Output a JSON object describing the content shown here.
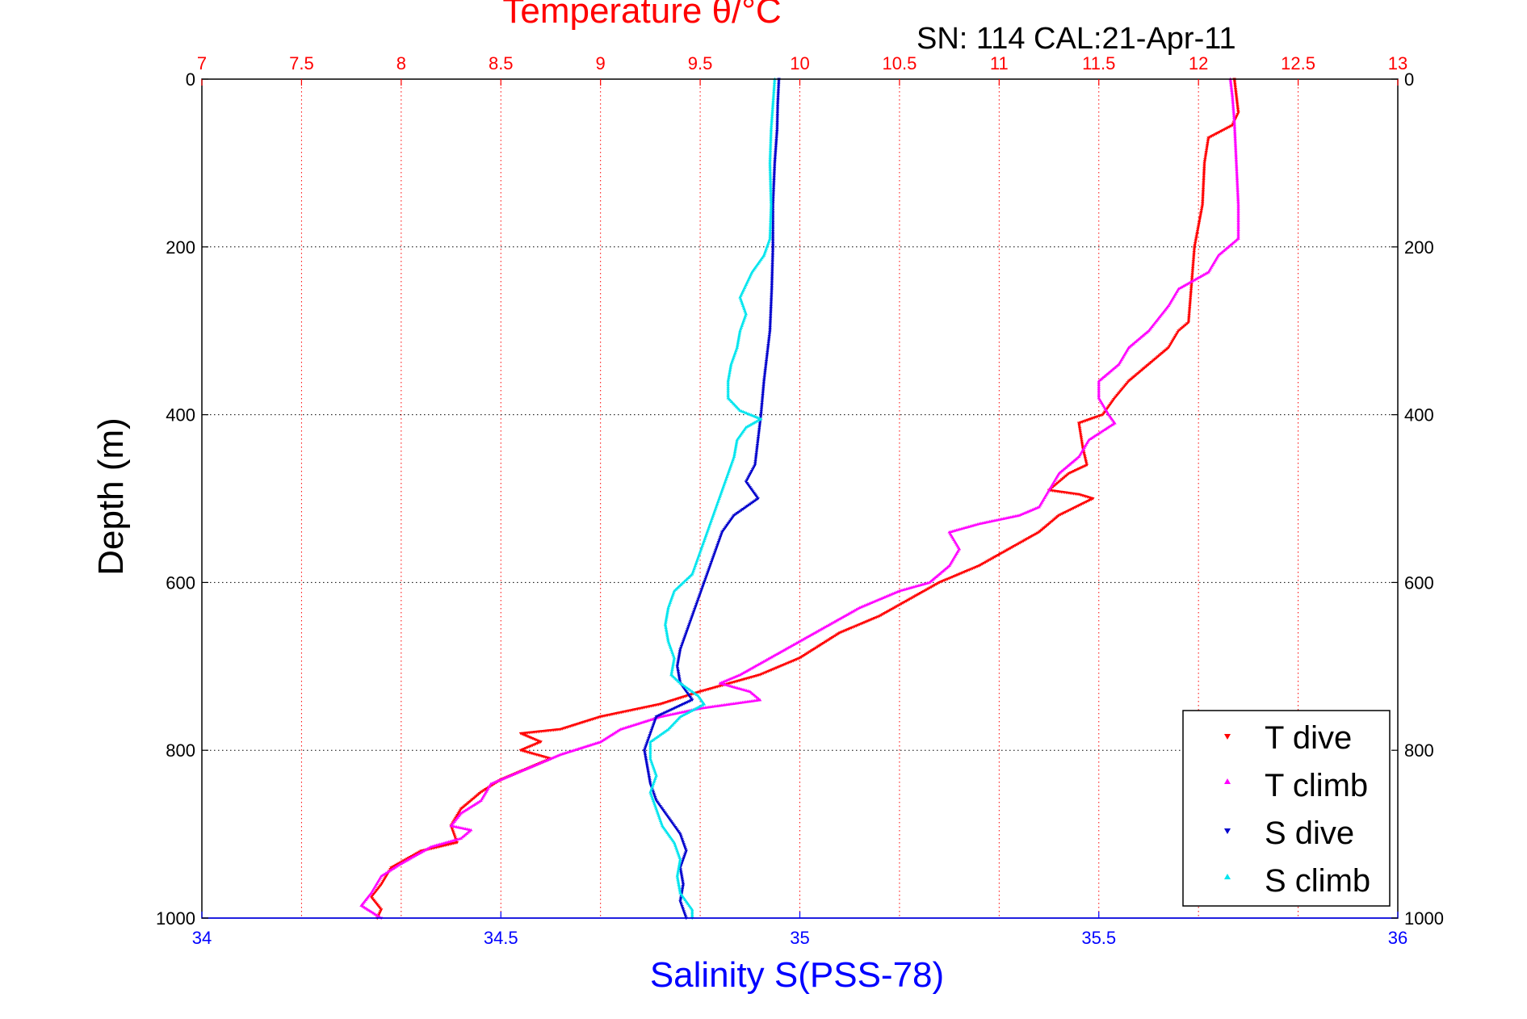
{
  "chart_data": {
    "type": "scatter",
    "title": "Temperature θ/°C",
    "subtitle": "SN: 114  CAL:21-Apr-11",
    "xlabel_bottom": "Salinity S(PSS-78)",
    "ylabel": "Depth (m)",
    "x_top": {
      "label": "Temperature θ/°C",
      "lim": [
        7,
        13
      ],
      "ticks": [
        "7",
        "7.5",
        "8",
        "8.5",
        "9",
        "9.5",
        "10",
        "10.5",
        "11",
        "11.5",
        "12",
        "12.5",
        "13"
      ],
      "color": "#ff0000"
    },
    "x_bottom": {
      "label": "Salinity S(PSS-78)",
      "lim": [
        34,
        36
      ],
      "ticks": [
        "34",
        "34.5",
        "35",
        "35.5",
        "36"
      ],
      "color": "#0000ff"
    },
    "y": {
      "lim": [
        0,
        1000
      ],
      "reversed": true,
      "ticks": [
        "0",
        "200",
        "400",
        "600",
        "800",
        "1000"
      ]
    },
    "grid": true,
    "legend": {
      "position": "bottom-right",
      "entries": [
        "T dive",
        "T climb",
        "S dive",
        "S climb"
      ]
    },
    "series": [
      {
        "name": "T dive",
        "axis": "top",
        "color": "#ff0000",
        "marker": "down-triangle",
        "points": [
          [
            12.18,
            0
          ],
          [
            12.19,
            20
          ],
          [
            12.2,
            40
          ],
          [
            12.17,
            55
          ],
          [
            12.05,
            70
          ],
          [
            12.03,
            100
          ],
          [
            12.02,
            150
          ],
          [
            11.98,
            200
          ],
          [
            11.97,
            230
          ],
          [
            11.96,
            260
          ],
          [
            11.95,
            290
          ],
          [
            11.9,
            300
          ],
          [
            11.85,
            320
          ],
          [
            11.75,
            340
          ],
          [
            11.65,
            360
          ],
          [
            11.58,
            380
          ],
          [
            11.52,
            400
          ],
          [
            11.4,
            410
          ],
          [
            11.42,
            440
          ],
          [
            11.44,
            460
          ],
          [
            11.35,
            470
          ],
          [
            11.3,
            480
          ],
          [
            11.25,
            490
          ],
          [
            11.4,
            495
          ],
          [
            11.47,
            500
          ],
          [
            11.3,
            520
          ],
          [
            11.2,
            540
          ],
          [
            11.05,
            560
          ],
          [
            10.9,
            580
          ],
          [
            10.7,
            600
          ],
          [
            10.55,
            620
          ],
          [
            10.4,
            640
          ],
          [
            10.2,
            660
          ],
          [
            10.0,
            690
          ],
          [
            9.8,
            710
          ],
          [
            9.5,
            730
          ],
          [
            9.3,
            745
          ],
          [
            9.0,
            760
          ],
          [
            8.8,
            775
          ],
          [
            8.6,
            780
          ],
          [
            8.7,
            790
          ],
          [
            8.6,
            800
          ],
          [
            8.75,
            810
          ],
          [
            8.65,
            820
          ],
          [
            8.5,
            835
          ],
          [
            8.4,
            850
          ],
          [
            8.3,
            870
          ],
          [
            8.25,
            890
          ],
          [
            8.28,
            910
          ],
          [
            8.1,
            920
          ],
          [
            7.95,
            940
          ],
          [
            7.9,
            960
          ],
          [
            7.85,
            975
          ],
          [
            7.9,
            990
          ],
          [
            7.88,
            1000
          ]
        ]
      },
      {
        "name": "T climb",
        "axis": "top",
        "color": "#ff00ff",
        "marker": "up-triangle",
        "points": [
          [
            12.16,
            0
          ],
          [
            12.17,
            20
          ],
          [
            12.18,
            50
          ],
          [
            12.19,
            100
          ],
          [
            12.2,
            150
          ],
          [
            12.2,
            190
          ],
          [
            12.1,
            210
          ],
          [
            12.05,
            230
          ],
          [
            11.9,
            250
          ],
          [
            11.85,
            270
          ],
          [
            11.75,
            300
          ],
          [
            11.65,
            320
          ],
          [
            11.6,
            340
          ],
          [
            11.5,
            360
          ],
          [
            11.5,
            380
          ],
          [
            11.55,
            400
          ],
          [
            11.58,
            410
          ],
          [
            11.45,
            430
          ],
          [
            11.4,
            450
          ],
          [
            11.3,
            470
          ],
          [
            11.25,
            490
          ],
          [
            11.2,
            510
          ],
          [
            11.1,
            520
          ],
          [
            10.9,
            530
          ],
          [
            10.75,
            540
          ],
          [
            10.8,
            560
          ],
          [
            10.75,
            580
          ],
          [
            10.65,
            600
          ],
          [
            10.5,
            610
          ],
          [
            10.3,
            630
          ],
          [
            10.15,
            650
          ],
          [
            10.0,
            670
          ],
          [
            9.85,
            690
          ],
          [
            9.7,
            710
          ],
          [
            9.6,
            720
          ],
          [
            9.75,
            730
          ],
          [
            9.8,
            740
          ],
          [
            9.5,
            750
          ],
          [
            9.3,
            760
          ],
          [
            9.1,
            775
          ],
          [
            9.0,
            790
          ],
          [
            8.8,
            805
          ],
          [
            8.7,
            815
          ],
          [
            8.6,
            825
          ],
          [
            8.45,
            840
          ],
          [
            8.4,
            860
          ],
          [
            8.3,
            875
          ],
          [
            8.25,
            890
          ],
          [
            8.35,
            895
          ],
          [
            8.3,
            905
          ],
          [
            8.15,
            915
          ],
          [
            8.0,
            935
          ],
          [
            7.9,
            950
          ],
          [
            7.85,
            970
          ],
          [
            7.8,
            985
          ],
          [
            7.9,
            1000
          ]
        ]
      },
      {
        "name": "S dive",
        "axis": "bottom",
        "color": "#0000cc",
        "marker": "down-triangle",
        "points": [
          [
            34.965,
            0
          ],
          [
            34.963,
            30
          ],
          [
            34.962,
            60
          ],
          [
            34.958,
            100
          ],
          [
            34.955,
            150
          ],
          [
            34.955,
            200
          ],
          [
            34.953,
            250
          ],
          [
            34.95,
            300
          ],
          [
            34.945,
            330
          ],
          [
            34.94,
            360
          ],
          [
            34.935,
            400
          ],
          [
            34.93,
            430
          ],
          [
            34.925,
            460
          ],
          [
            34.91,
            480
          ],
          [
            34.93,
            500
          ],
          [
            34.89,
            520
          ],
          [
            34.87,
            540
          ],
          [
            34.86,
            560
          ],
          [
            34.85,
            580
          ],
          [
            34.84,
            600
          ],
          [
            34.83,
            620
          ],
          [
            34.82,
            640
          ],
          [
            34.81,
            660
          ],
          [
            34.8,
            680
          ],
          [
            34.795,
            700
          ],
          [
            34.8,
            720
          ],
          [
            34.82,
            740
          ],
          [
            34.76,
            760
          ],
          [
            34.75,
            780
          ],
          [
            34.74,
            800
          ],
          [
            34.745,
            820
          ],
          [
            34.75,
            840
          ],
          [
            34.76,
            860
          ],
          [
            34.78,
            880
          ],
          [
            34.8,
            900
          ],
          [
            34.81,
            920
          ],
          [
            34.8,
            940
          ],
          [
            34.805,
            960
          ],
          [
            34.8,
            980
          ],
          [
            34.81,
            1000
          ]
        ]
      },
      {
        "name": "S climb",
        "axis": "bottom",
        "color": "#00e5ee",
        "marker": "up-triangle",
        "points": [
          [
            34.958,
            0
          ],
          [
            34.955,
            30
          ],
          [
            34.952,
            60
          ],
          [
            34.95,
            100
          ],
          [
            34.952,
            150
          ],
          [
            34.95,
            190
          ],
          [
            34.94,
            210
          ],
          [
            34.92,
            230
          ],
          [
            34.9,
            260
          ],
          [
            34.91,
            280
          ],
          [
            34.9,
            300
          ],
          [
            34.895,
            320
          ],
          [
            34.885,
            340
          ],
          [
            34.88,
            360
          ],
          [
            34.88,
            380
          ],
          [
            34.9,
            395
          ],
          [
            34.935,
            405
          ],
          [
            34.91,
            415
          ],
          [
            34.895,
            430
          ],
          [
            34.89,
            450
          ],
          [
            34.88,
            470
          ],
          [
            34.87,
            490
          ],
          [
            34.86,
            510
          ],
          [
            34.85,
            530
          ],
          [
            34.84,
            550
          ],
          [
            34.83,
            570
          ],
          [
            34.82,
            590
          ],
          [
            34.79,
            610
          ],
          [
            34.78,
            630
          ],
          [
            34.775,
            650
          ],
          [
            34.78,
            670
          ],
          [
            34.79,
            690
          ],
          [
            34.785,
            710
          ],
          [
            34.8,
            720
          ],
          [
            34.83,
            735
          ],
          [
            34.84,
            745
          ],
          [
            34.8,
            760
          ],
          [
            34.78,
            775
          ],
          [
            34.75,
            790
          ],
          [
            34.75,
            810
          ],
          [
            34.76,
            830
          ],
          [
            34.75,
            850
          ],
          [
            34.76,
            870
          ],
          [
            34.77,
            890
          ],
          [
            34.79,
            910
          ],
          [
            34.8,
            930
          ],
          [
            34.795,
            950
          ],
          [
            34.8,
            970
          ],
          [
            34.82,
            990
          ],
          [
            34.82,
            1000
          ]
        ]
      }
    ]
  }
}
